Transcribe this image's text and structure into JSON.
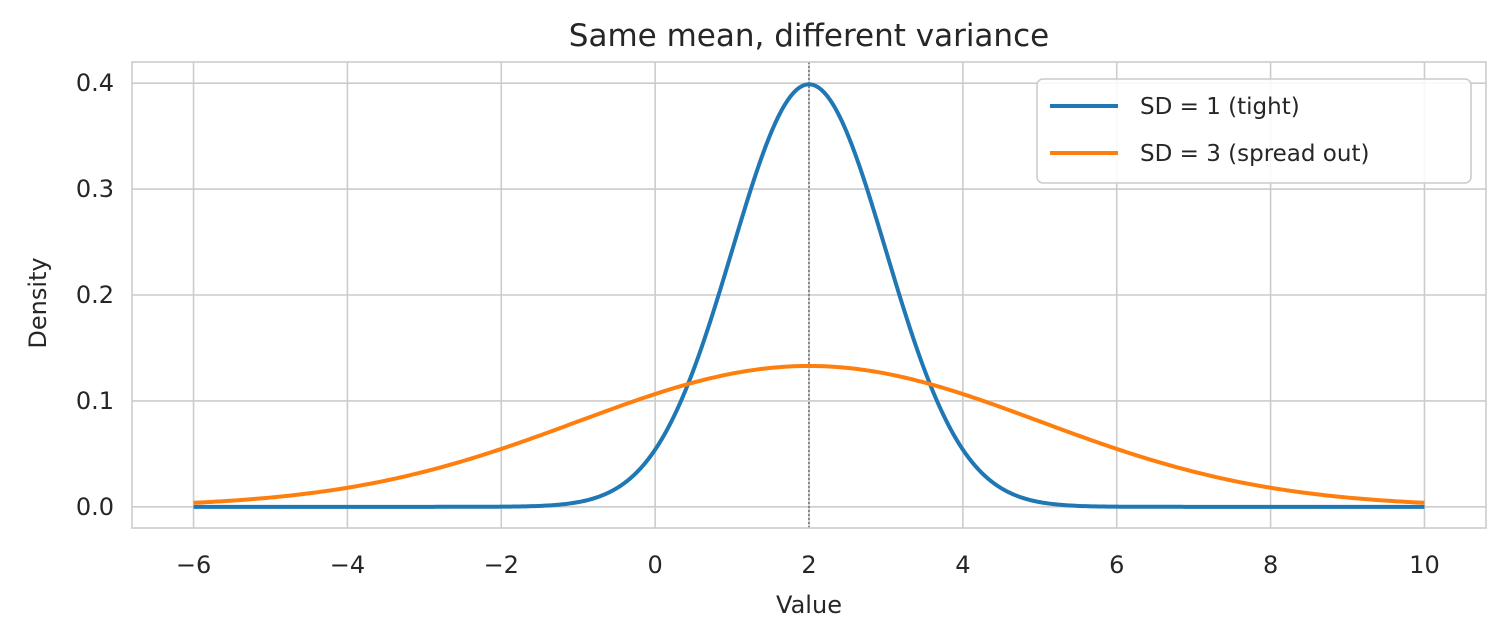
{
  "chart_data": {
    "type": "line",
    "title": "Same mean, different variance",
    "xlabel": "Value",
    "ylabel": "Density",
    "xlim": [
      -6.8,
      10.8
    ],
    "ylim": [
      -0.02,
      0.42
    ],
    "xticks": [
      -6,
      -4,
      -2,
      0,
      2,
      4,
      6,
      8,
      10
    ],
    "xtick_labels": [
      "−6",
      "−4",
      "−2",
      "0",
      "2",
      "4",
      "6",
      "8",
      "10"
    ],
    "yticks": [
      0.0,
      0.1,
      0.2,
      0.3,
      0.4
    ],
    "ytick_labels": [
      "0.0",
      "0.1",
      "0.2",
      "0.3",
      "0.4"
    ],
    "grid": true,
    "legend_position": "top-right",
    "mean_line": {
      "x": 2,
      "style": "dotted",
      "color": "#808080"
    },
    "series": [
      {
        "name": "SD = 1 (tight)",
        "color": "#1f77b4",
        "x": [
          -6,
          -5,
          -4,
          -3,
          -2,
          -1,
          -0.5,
          0,
          0.5,
          1,
          1.5,
          2,
          2.5,
          3,
          3.5,
          4,
          4.5,
          5,
          6,
          7,
          8,
          9,
          10
        ],
        "y": [
          0.0,
          0.0,
          0.0,
          0.0,
          0.0001,
          0.0044,
          0.0175,
          0.054,
          0.1295,
          0.242,
          0.3521,
          0.3989,
          0.3521,
          0.242,
          0.1295,
          0.054,
          0.0175,
          0.0044,
          0.0001,
          0.0,
          0.0,
          0.0,
          0.0
        ]
      },
      {
        "name": "SD = 3 (spread out)",
        "color": "#ff7f0e",
        "x": [
          -6,
          -5,
          -4,
          -3,
          -2,
          -1,
          0,
          1,
          2,
          3,
          4,
          5,
          6,
          7,
          8,
          9,
          10
        ],
        "y": [
          0.0038,
          0.0087,
          0.018,
          0.0332,
          0.0547,
          0.0807,
          0.1065,
          0.1258,
          0.133,
          0.1258,
          0.1065,
          0.0807,
          0.0547,
          0.0332,
          0.018,
          0.0087,
          0.0038
        ]
      }
    ]
  }
}
